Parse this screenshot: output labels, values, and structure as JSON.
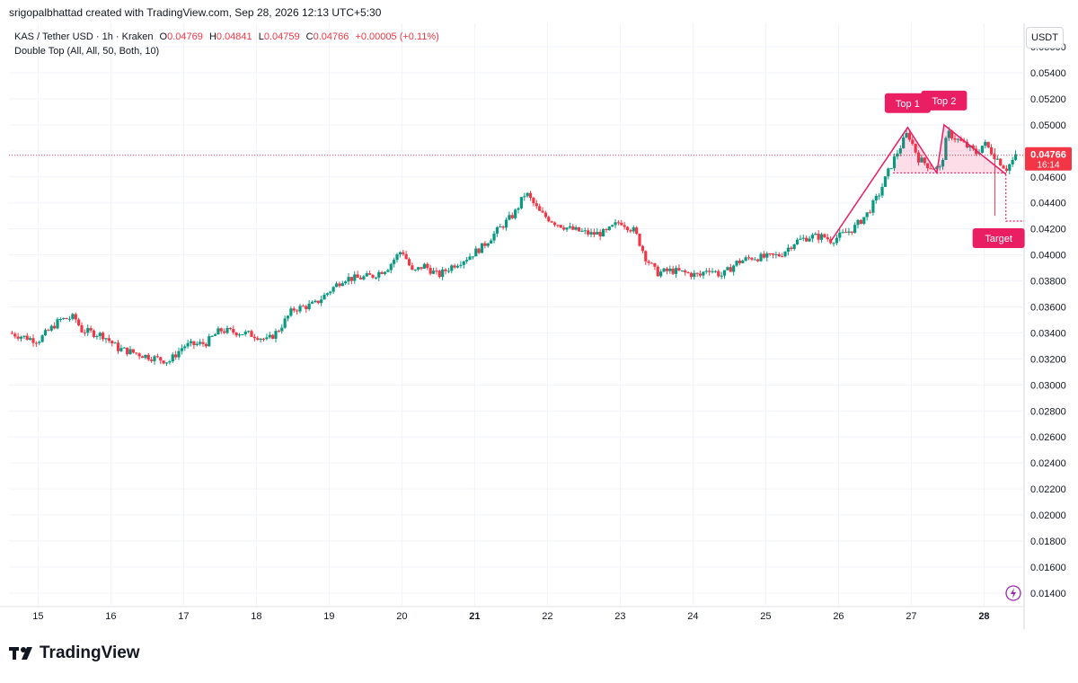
{
  "credit": "srigopalbhattad created with TradingView.com, Sep 28, 2026 12:13 UTC+5:30",
  "legend": {
    "symbol": "KAS / Tether USD · 1h · Kraken",
    "o_label": "O",
    "o_val": "0.04769",
    "h_label": "H",
    "h_val": "0.04841",
    "l_label": "L",
    "l_val": "0.04759",
    "c_label": "C",
    "c_val": "0.04766",
    "change": "+0.00005 (+0.11%)",
    "indicator": "Double Top (All, All, 50, Both, 10)"
  },
  "currency_button": "USDT",
  "brand": "TradingView",
  "colors": {
    "up": "#089981",
    "down": "#f23645",
    "pattern": "#e91e63",
    "grid": "#f0f3fa"
  },
  "chart_data": {
    "type": "candlestick",
    "title": "",
    "y_ticks": [
      "0.05600",
      "0.05400",
      "0.05200",
      "0.05000",
      "0.04800",
      "0.04600",
      "0.04400",
      "0.04200",
      "0.04000",
      "0.03800",
      "0.03600",
      "0.03400",
      "0.03200",
      "0.03000",
      "0.02800",
      "0.02600",
      "0.02400",
      "0.02200",
      "0.02000",
      "0.01800",
      "0.01600",
      "0.01400"
    ],
    "x_ticks": [
      "15",
      "16",
      "17",
      "18",
      "19",
      "20",
      "21",
      "22",
      "23",
      "24",
      "25",
      "26",
      "27",
      "28"
    ],
    "x_ticks_bold": [
      "21",
      "28"
    ],
    "ylim": [
      0.0133,
      0.0578
    ],
    "xlim": [
      14.6,
      28.55
    ],
    "grid": true,
    "last_price": {
      "value": 0.04766,
      "label": "0.04766",
      "countdown": "16:14"
    },
    "annotations": [
      {
        "label": "Top 1",
        "x": 26.95,
        "y": 0.0498
      },
      {
        "label": "Top 2",
        "x": 27.45,
        "y": 0.05
      },
      {
        "label": "Target",
        "x": 28.2,
        "y": 0.0426
      }
    ],
    "pattern": {
      "legs": [
        [
          25.9,
          0.0411
        ],
        [
          26.95,
          0.0498
        ],
        [
          27.35,
          0.0463
        ],
        [
          27.45,
          0.05
        ],
        [
          28.3,
          0.0462
        ]
      ],
      "neckline": [
        [
          26.75,
          0.0463
        ],
        [
          28.3,
          0.0463
        ]
      ],
      "target": [
        [
          28.3,
          0.0462
        ],
        [
          28.3,
          0.0426
        ],
        [
          28.55,
          0.0426
        ]
      ]
    },
    "path_points": [
      [
        14.6,
        0.034
      ],
      [
        15.0,
        0.0334
      ],
      [
        15.3,
        0.035
      ],
      [
        15.5,
        0.0352
      ],
      [
        15.6,
        0.0342
      ],
      [
        15.9,
        0.0338
      ],
      [
        16.1,
        0.0328
      ],
      [
        16.5,
        0.0322
      ],
      [
        16.8,
        0.0318
      ],
      [
        17.0,
        0.033
      ],
      [
        17.3,
        0.0332
      ],
      [
        17.5,
        0.0342
      ],
      [
        17.8,
        0.034
      ],
      [
        18.0,
        0.0338
      ],
      [
        18.15,
        0.0334
      ],
      [
        18.3,
        0.0342
      ],
      [
        18.5,
        0.0358
      ],
      [
        18.8,
        0.0362
      ],
      [
        19.0,
        0.0372
      ],
      [
        19.2,
        0.0382
      ],
      [
        19.4,
        0.0382
      ],
      [
        19.6,
        0.0384
      ],
      [
        19.8,
        0.039
      ],
      [
        20.0,
        0.0404
      ],
      [
        20.15,
        0.0386
      ],
      [
        20.3,
        0.0392
      ],
      [
        20.5,
        0.0384
      ],
      [
        20.7,
        0.0392
      ],
      [
        20.9,
        0.0398
      ],
      [
        21.1,
        0.0406
      ],
      [
        21.3,
        0.0418
      ],
      [
        21.55,
        0.0432
      ],
      [
        21.7,
        0.0448
      ],
      [
        21.9,
        0.0432
      ],
      [
        22.1,
        0.0425
      ],
      [
        22.3,
        0.042
      ],
      [
        22.6,
        0.0416
      ],
      [
        22.8,
        0.0417
      ],
      [
        23.0,
        0.0426
      ],
      [
        23.2,
        0.0418
      ],
      [
        23.35,
        0.0398
      ],
      [
        23.5,
        0.0386
      ],
      [
        23.7,
        0.0388
      ],
      [
        23.9,
        0.0386
      ],
      [
        24.1,
        0.0384
      ],
      [
        24.2,
        0.039
      ],
      [
        24.4,
        0.0384
      ],
      [
        24.6,
        0.0394
      ],
      [
        24.8,
        0.0398
      ],
      [
        25.0,
        0.0398
      ],
      [
        25.2,
        0.04
      ],
      [
        25.4,
        0.041
      ],
      [
        25.6,
        0.0414
      ],
      [
        25.8,
        0.0414
      ],
      [
        25.9,
        0.0411
      ],
      [
        26.2,
        0.042
      ],
      [
        26.4,
        0.0432
      ],
      [
        26.55,
        0.0446
      ],
      [
        26.7,
        0.0466
      ],
      [
        26.8,
        0.0478
      ],
      [
        26.95,
        0.0494
      ],
      [
        27.1,
        0.0474
      ],
      [
        27.25,
        0.0468
      ],
      [
        27.4,
        0.0466
      ],
      [
        27.5,
        0.0494
      ],
      [
        27.7,
        0.0486
      ],
      [
        27.9,
        0.0478
      ],
      [
        28.0,
        0.0486
      ],
      [
        28.15,
        0.0476
      ],
      [
        28.3,
        0.0466
      ],
      [
        28.45,
        0.04766
      ]
    ]
  }
}
